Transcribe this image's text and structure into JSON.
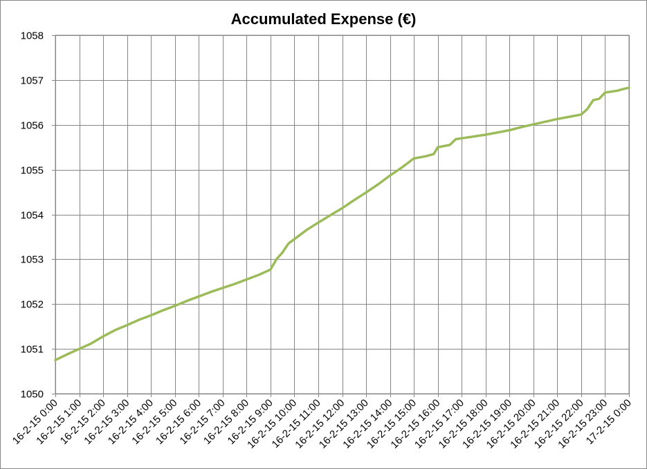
{
  "chart_data": {
    "type": "line",
    "title": "Accumulated Expense (€)",
    "xlabel": "",
    "ylabel": "",
    "ylim": [
      1050,
      1058
    ],
    "yticks": [
      "1050",
      "1051",
      "1052",
      "1053",
      "1054",
      "1055",
      "1056",
      "1057",
      "1058"
    ],
    "x_tick_labels": [
      "16-2-15 0:00",
      "16-2-15 1:00",
      "16-2-15 2:00",
      "16-2-15 3:00",
      "16-2-15 4:00",
      "16-2-15 5:00",
      "16-2-15 6:00",
      "16-2-15 7:00",
      "16-2-15 8:00",
      "16-2-15 9:00",
      "16-2-15 10:00",
      "16-2-15 11:00",
      "16-2-15 12:00",
      "16-2-15 13:00",
      "16-2-15 14:00",
      "16-2-15 15:00",
      "16-2-15 16:00",
      "16-2-15 17:00",
      "16-2-15 18:00",
      "16-2-15 19:00",
      "16-2-15 20:00",
      "16-2-15 21:00",
      "16-2-15 22:00",
      "16-2-15 23:00",
      "17-2-15 0:00"
    ],
    "grid": true,
    "legend": "none",
    "color": "#9BBB59",
    "series": [
      {
        "x": [
          "16-2-15 0:00",
          "16-2-15 0:30",
          "16-2-15 1:00",
          "16-2-15 1:30",
          "16-2-15 2:00",
          "16-2-15 2:30",
          "16-2-15 3:00",
          "16-2-15 3:30",
          "16-2-15 4:00",
          "16-2-15 4:30",
          "16-2-15 5:00",
          "16-2-15 5:30",
          "16-2-15 6:00",
          "16-2-15 6:30",
          "16-2-15 7:00",
          "16-2-15 7:30",
          "16-2-15 8:00",
          "16-2-15 8:30",
          "16-2-15 9:00",
          "16-2-15 9:15",
          "16-2-15 9:30",
          "16-2-15 9:45",
          "16-2-15 10:00",
          "16-2-15 10:30",
          "16-2-15 11:00",
          "16-2-15 11:30",
          "16-2-15 12:00",
          "16-2-15 12:30",
          "16-2-15 13:00",
          "16-2-15 13:30",
          "16-2-15 14:00",
          "16-2-15 14:30",
          "16-2-15 15:00",
          "16-2-15 15:30",
          "16-2-15 15:50",
          "16-2-15 16:00",
          "16-2-15 16:30",
          "16-2-15 16:45",
          "16-2-15 17:00",
          "16-2-15 17:30",
          "16-2-15 18:00",
          "16-2-15 18:30",
          "16-2-15 19:00",
          "16-2-15 19:30",
          "16-2-15 20:00",
          "16-2-15 20:30",
          "16-2-15 21:00",
          "16-2-15 21:30",
          "16-2-15 22:00",
          "16-2-15 22:15",
          "16-2-15 22:30",
          "16-2-15 22:45",
          "16-2-15 23:00",
          "16-2-15 23:15",
          "16-2-15 23:30",
          "16-2-15 23:45",
          "17-2-15 0:00"
        ],
        "values": [
          1050.75,
          1050.88,
          1051.0,
          1051.12,
          1051.28,
          1051.42,
          1051.53,
          1051.65,
          1051.75,
          1051.86,
          1051.96,
          1052.07,
          1052.17,
          1052.27,
          1052.36,
          1052.45,
          1052.55,
          1052.65,
          1052.77,
          1053.0,
          1053.15,
          1053.35,
          1053.45,
          1053.65,
          1053.82,
          1053.98,
          1054.14,
          1054.32,
          1054.49,
          1054.67,
          1054.87,
          1055.05,
          1055.25,
          1055.3,
          1055.35,
          1055.5,
          1055.55,
          1055.68,
          1055.7,
          1055.74,
          1055.78,
          1055.83,
          1055.88,
          1055.95,
          1056.01,
          1056.07,
          1056.13,
          1056.18,
          1056.23,
          1056.35,
          1056.55,
          1056.58,
          1056.72,
          1056.74,
          1056.76,
          1056.8,
          1056.83
        ]
      }
    ]
  }
}
